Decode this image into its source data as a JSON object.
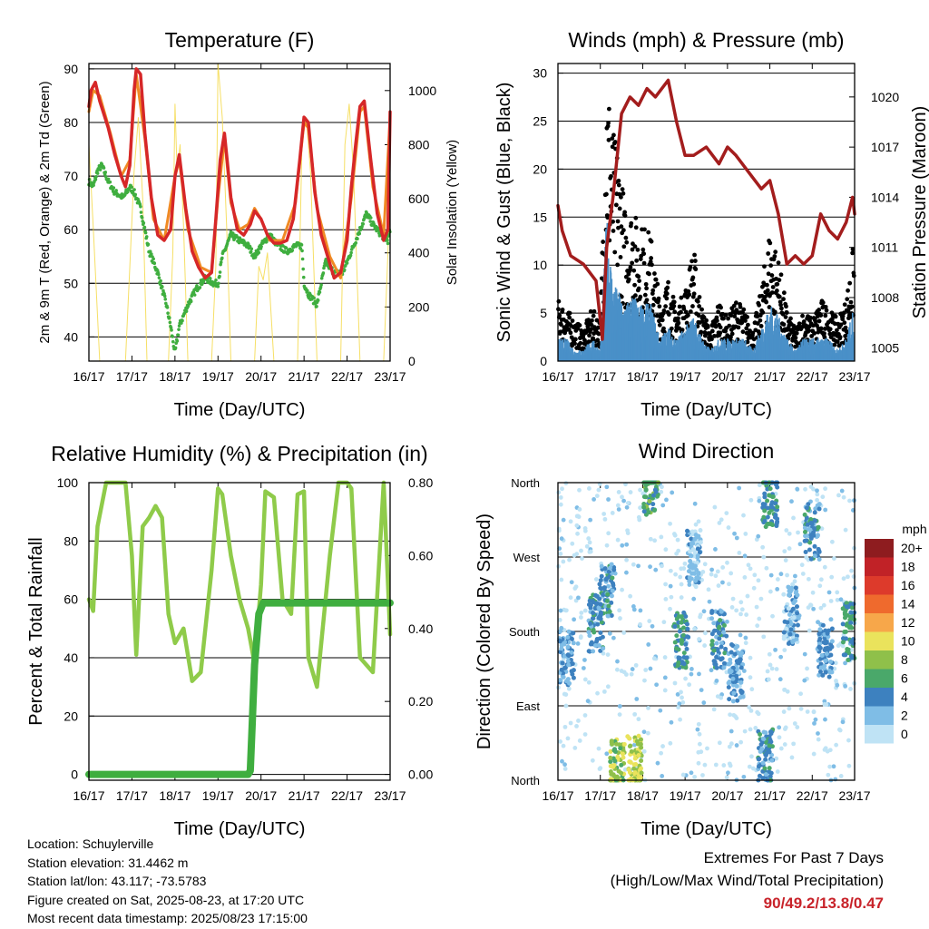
{
  "info": {
    "location": "Location: Schuylerville",
    "elevation": "Station elevation: 31.4462 m",
    "latlon": "Station lat/lon: 43.117; -73.5783",
    "created": "Figure created on Sat, 2025-08-23, at 17:20 UTC",
    "recent": "Most recent data timestamp: 2025/08/23 17:15:00"
  },
  "extremes": {
    "title": "Extremes For Past 7 Days",
    "subtitle": "(High/Low/Max Wind/Total Precipitation)",
    "values": "90/49.2/13.8/0.47"
  },
  "colors": {
    "temp_red": "#d62728",
    "temp_orange": "#f08a24",
    "dewpoint_green": "#3fae3f",
    "solar_yellow": "#f5d94a",
    "gust_black": "#000000",
    "wind_blue": "#4a90c8",
    "pressure_maroon": "#a31d1d",
    "rh_lightgreen": "#8fcb4a",
    "rain_green": "#3fae3f"
  },
  "chart_data": [
    {
      "id": "temperature",
      "type": "line",
      "title": "Temperature (F)",
      "xlabel": "Time (Day/UTC)",
      "ylabel": "2m & 9m T (Red, Orange) & 2m Td (Green)",
      "y2label": "Solar Insolation (Yellow)",
      "xticks": [
        "16/17",
        "17/17",
        "18/17",
        "19/17",
        "20/17",
        "21/17",
        "22/17",
        "23/17"
      ],
      "xlim": [
        0,
        7
      ],
      "ylim": [
        35.5,
        91
      ],
      "yticks": [
        40,
        50,
        60,
        70,
        80,
        90
      ],
      "y2lim": [
        0,
        1100
      ],
      "y2ticks": [
        0,
        200,
        400,
        600,
        800,
        1000
      ],
      "grid": true,
      "series": [
        {
          "name": "2m T",
          "color": "#d62728",
          "x": [
            0,
            0.05,
            0.15,
            0.25,
            0.45,
            0.6,
            0.75,
            0.85,
            0.95,
            1.05,
            1.1,
            1.2,
            1.3,
            1.45,
            1.6,
            1.75,
            1.9,
            2.0,
            2.1,
            2.25,
            2.4,
            2.55,
            2.7,
            2.85,
            2.95,
            3.05,
            3.15,
            3.3,
            3.45,
            3.6,
            3.75,
            3.85,
            4.0,
            4.15,
            4.3,
            4.45,
            4.6,
            4.75,
            4.9,
            5.0,
            5.1,
            5.25,
            5.4,
            5.55,
            5.7,
            5.85,
            6.0,
            6.1,
            6.2,
            6.3,
            6.4,
            6.55,
            6.7,
            6.85,
            6.95,
            7.0
          ],
          "values": [
            83,
            86,
            87.5,
            84,
            79,
            74,
            70,
            68,
            72,
            86,
            90,
            89,
            78,
            66,
            59,
            58,
            60,
            70,
            74,
            64,
            56,
            53,
            51,
            52,
            62,
            73,
            78,
            66,
            60,
            59,
            61,
            63.5,
            62,
            59,
            57.5,
            57.5,
            58,
            62,
            73,
            81,
            80,
            67,
            59,
            55,
            51,
            52,
            58,
            68,
            76,
            83,
            84,
            73,
            63,
            58,
            60,
            82
          ]
        },
        {
          "name": "9m T",
          "color": "#f08a24",
          "x": [
            0,
            0.1,
            0.25,
            0.5,
            0.75,
            0.95,
            1.1,
            1.3,
            1.5,
            1.75,
            2.0,
            2.1,
            2.3,
            2.6,
            2.85,
            3.0,
            3.15,
            3.3,
            3.5,
            3.7,
            3.85,
            4.0,
            4.2,
            4.5,
            4.8,
            5.0,
            5.1,
            5.3,
            5.6,
            5.85,
            6.1,
            6.3,
            6.4,
            6.6,
            6.85,
            7.0
          ],
          "values": [
            82,
            86,
            85,
            78,
            70,
            73,
            89,
            77,
            62,
            58,
            70,
            73,
            60,
            53,
            52,
            66,
            77,
            65,
            60,
            61,
            64,
            62,
            58,
            58,
            65,
            80,
            79,
            64,
            55,
            51,
            66,
            82,
            83,
            68,
            59,
            81
          ]
        },
        {
          "name": "2m Td",
          "color": "#3fae3f",
          "x": [
            0,
            0.1,
            0.2,
            0.3,
            0.45,
            0.6,
            0.8,
            0.95,
            1.05,
            1.2,
            1.4,
            1.6,
            1.8,
            1.9,
            2.0,
            2.1,
            2.3,
            2.5,
            2.7,
            2.9,
            3.0,
            3.1,
            3.3,
            3.5,
            3.7,
            3.85,
            4.0,
            4.2,
            4.4,
            4.6,
            4.8,
            4.95,
            5.0,
            5.1,
            5.3,
            5.5,
            5.7,
            5.9,
            6.1,
            6.3,
            6.45,
            6.6,
            6.8,
            6.95,
            7.0
          ],
          "values": [
            69,
            68,
            71,
            72,
            69,
            67,
            66,
            68,
            67,
            64,
            56,
            52,
            46,
            42,
            37,
            42,
            46,
            49,
            51,
            50,
            50,
            55,
            59,
            58,
            57,
            55,
            57,
            59,
            57,
            56,
            57,
            57,
            50,
            48,
            46,
            54,
            52,
            52,
            56,
            60,
            63,
            61,
            59,
            58,
            60
          ]
        },
        {
          "name": "Solar",
          "color": "#f5d94a",
          "axis": "y2",
          "x": [
            0,
            0.1,
            0.25,
            0.6,
            0.85,
            0.95,
            1.05,
            1.15,
            1.25,
            1.35,
            1.6,
            1.85,
            1.95,
            2.0,
            2.05,
            2.12,
            2.2,
            2.3,
            2.6,
            2.85,
            2.95,
            3.0,
            3.1,
            3.2,
            3.3,
            3.6,
            3.85,
            3.95,
            4.05,
            4.15,
            4.3,
            4.6,
            4.85,
            4.95,
            5.05,
            5.15,
            5.3,
            5.6,
            5.85,
            5.95,
            6.05,
            6.15,
            6.3,
            6.6,
            6.85,
            6.95,
            7.0
          ],
          "values": [
            800,
            500,
            0,
            0,
            0,
            350,
            700,
            900,
            600,
            0,
            0,
            0,
            400,
            950,
            700,
            800,
            500,
            0,
            0,
            0,
            350,
            1100,
            900,
            500,
            0,
            0,
            0,
            350,
            300,
            400,
            0,
            0,
            0,
            800,
            900,
            700,
            0,
            0,
            0,
            800,
            950,
            700,
            0,
            0,
            0,
            400,
            700
          ]
        }
      ]
    },
    {
      "id": "winds",
      "type": "scatter",
      "title": "Winds (mph) & Pressure (mb)",
      "xlabel": "Time (Day/UTC)",
      "ylabel": "Sonic Wind & Gust (Blue, Black)",
      "y2label": "Station Pressure (Maroon)",
      "xticks": [
        "16/17",
        "17/17",
        "18/17",
        "19/17",
        "20/17",
        "21/17",
        "22/17",
        "23/17"
      ],
      "xlim": [
        0,
        7
      ],
      "ylim": [
        0,
        31
      ],
      "yticks": [
        0,
        5,
        10,
        15,
        20,
        25,
        30
      ],
      "y2lim": [
        1004.2,
        1022
      ],
      "y2ticks": [
        1005,
        1008,
        1011,
        1014,
        1017,
        1020
      ],
      "grid": true,
      "series": [
        {
          "name": "Gust",
          "color": "#000000",
          "x": [
            0,
            0.2,
            0.4,
            0.6,
            0.8,
            1.0,
            1.15,
            1.3,
            1.45,
            1.6,
            1.75,
            1.9,
            2.05,
            2.2,
            2.4,
            2.6,
            2.8,
            3.0,
            3.2,
            3.4,
            3.6,
            3.8,
            4.0,
            4.2,
            4.4,
            4.6,
            4.8,
            5.0,
            5.2,
            5.4,
            5.6,
            5.8,
            6.0,
            6.2,
            6.4,
            6.6,
            6.8,
            7.0
          ],
          "values": [
            6,
            5,
            4,
            3,
            5,
            4,
            29,
            22,
            20,
            14,
            15,
            13,
            13,
            12,
            6,
            8,
            5,
            7,
            11,
            5,
            3,
            6,
            4,
            6,
            5,
            3,
            7,
            13,
            10,
            5,
            3,
            5,
            4,
            6,
            5,
            4,
            6,
            12
          ]
        },
        {
          "name": "Sonic Wind",
          "color": "#4a90c8",
          "x": [
            0,
            0.2,
            0.4,
            0.6,
            0.8,
            1.0,
            1.15,
            1.3,
            1.45,
            1.6,
            1.75,
            1.9,
            2.05,
            2.2,
            2.4,
            2.6,
            2.8,
            3.0,
            3.2,
            3.4,
            3.6,
            3.8,
            4.0,
            4.2,
            4.4,
            4.6,
            4.8,
            5.0,
            5.2,
            5.4,
            5.6,
            5.8,
            6.0,
            6.2,
            6.4,
            6.6,
            6.8,
            7.0
          ],
          "values": [
            2,
            2,
            1,
            1,
            2,
            1,
            13,
            7,
            6,
            5,
            6,
            5,
            5,
            5,
            2,
            3,
            2,
            3,
            4,
            2,
            1,
            2,
            2,
            2,
            2,
            1,
            3,
            5,
            4,
            2,
            1,
            2,
            2,
            2,
            2,
            1,
            2,
            5
          ]
        },
        {
          "name": "Station Pressure",
          "color": "#a31d1d",
          "axis": "y2",
          "x": [
            0,
            0.1,
            0.3,
            0.6,
            0.9,
            1.05,
            1.15,
            1.3,
            1.5,
            1.7,
            1.9,
            2.1,
            2.3,
            2.6,
            2.8,
            3.0,
            3.2,
            3.5,
            3.8,
            4.0,
            4.2,
            4.5,
            4.8,
            5.0,
            5.2,
            5.4,
            5.6,
            5.8,
            6.0,
            6.2,
            6.4,
            6.6,
            6.8,
            6.95,
            7.0
          ],
          "values": [
            1013.5,
            1012,
            1010.5,
            1010,
            1009,
            1005.5,
            1011,
            1014,
            1019,
            1020,
            1019.5,
            1020.5,
            1020,
            1021,
            1018.5,
            1016.5,
            1016.5,
            1017,
            1016,
            1017,
            1016.5,
            1015.5,
            1014.5,
            1015,
            1013,
            1010,
            1010.5,
            1010,
            1010.5,
            1013,
            1012,
            1011.5,
            1012.5,
            1014,
            1013
          ]
        }
      ]
    },
    {
      "id": "humidity",
      "type": "line",
      "title": "Relative Humidity (%) & Precipitation (in)",
      "xlabel": "Time (Day/UTC)",
      "ylabel": "Percent & Total Rainfall",
      "xticks": [
        "16/17",
        "17/17",
        "18/17",
        "19/17",
        "20/17",
        "21/17",
        "22/17",
        "23/17"
      ],
      "xlim": [
        0,
        7
      ],
      "ylim": [
        -2,
        100
      ],
      "yticks": [
        0,
        20,
        40,
        60,
        80,
        100
      ],
      "y2lim": [
        -0.016,
        0.8
      ],
      "y2ticks": [
        "0.00",
        "0.20",
        "0.40",
        "0.60",
        "0.80"
      ],
      "grid": true,
      "series": [
        {
          "name": "RH",
          "color": "#8fcb4a",
          "x": [
            0,
            0.1,
            0.2,
            0.4,
            0.6,
            0.85,
            1.0,
            1.1,
            1.25,
            1.4,
            1.55,
            1.7,
            1.85,
            2.0,
            2.2,
            2.4,
            2.6,
            2.85,
            3.0,
            3.1,
            3.3,
            3.5,
            3.7,
            3.85,
            4.0,
            4.1,
            4.3,
            4.5,
            4.7,
            4.85,
            5.0,
            5.1,
            5.3,
            5.6,
            5.8,
            6.0,
            6.1,
            6.3,
            6.6,
            6.85,
            7.0
          ],
          "values": [
            60,
            56,
            85,
            100,
            100,
            100,
            75,
            41,
            85,
            88,
            92,
            88,
            55,
            45,
            50,
            32,
            35,
            70,
            98,
            96,
            75,
            60,
            50,
            38,
            65,
            97,
            95,
            60,
            55,
            96,
            97,
            40,
            30,
            75,
            100,
            100,
            98,
            40,
            35,
            100,
            48
          ]
        },
        {
          "name": "Total Precipitation",
          "color": "#3fae3f",
          "axis": "y2",
          "x": [
            0,
            3.7,
            3.75,
            3.8,
            3.85,
            3.95,
            4.05,
            7.0
          ],
          "values": [
            0,
            0,
            0.01,
            0.15,
            0.3,
            0.44,
            0.47,
            0.47
          ]
        }
      ]
    },
    {
      "id": "direction",
      "type": "scatter",
      "title": "Wind Direction",
      "xlabel": "Time (Day/UTC)",
      "ylabel": "Direction (Colored By Speed)",
      "xticks": [
        "16/17",
        "17/17",
        "18/17",
        "19/17",
        "20/17",
        "21/17",
        "22/17",
        "23/17"
      ],
      "xlim": [
        0,
        7
      ],
      "ylim": [
        0,
        360
      ],
      "ytick_labels": [
        "North",
        "East",
        "South",
        "West",
        "North"
      ],
      "yticks": [
        0,
        90,
        180,
        270,
        360
      ],
      "grid": true,
      "colorbar": {
        "title": "mph",
        "labels": [
          "20+",
          "18",
          "16",
          "14",
          "12",
          "10",
          "8",
          "6",
          "4",
          "2",
          "0"
        ],
        "colors": [
          "#8e1c1f",
          "#c12227",
          "#dd3a2b",
          "#ef6a2d",
          "#f7a74a",
          "#eae35c",
          "#8fc04a",
          "#4aa86a",
          "#3d81bf",
          "#7fbde6",
          "#bfe3f5"
        ]
      },
      "clusters": [
        {
          "x": 0.2,
          "y": 150,
          "speed": 3
        },
        {
          "x": 0.9,
          "y": 190,
          "speed": 4
        },
        {
          "x": 1.15,
          "y": 230,
          "speed": 4
        },
        {
          "x": 1.4,
          "y": 15,
          "speed": 8
        },
        {
          "x": 1.8,
          "y": 20,
          "speed": 9
        },
        {
          "x": 2.2,
          "y": 355,
          "speed": 6
        },
        {
          "x": 2.9,
          "y": 170,
          "speed": 5
        },
        {
          "x": 3.2,
          "y": 270,
          "speed": 2
        },
        {
          "x": 3.8,
          "y": 170,
          "speed": 4
        },
        {
          "x": 4.2,
          "y": 130,
          "speed": 3
        },
        {
          "x": 4.9,
          "y": 30,
          "speed": 4
        },
        {
          "x": 5.0,
          "y": 340,
          "speed": 5
        },
        {
          "x": 5.5,
          "y": 200,
          "speed": 2
        },
        {
          "x": 6.0,
          "y": 300,
          "speed": 4
        },
        {
          "x": 6.3,
          "y": 160,
          "speed": 3
        },
        {
          "x": 6.9,
          "y": 180,
          "speed": 5
        }
      ]
    }
  ]
}
